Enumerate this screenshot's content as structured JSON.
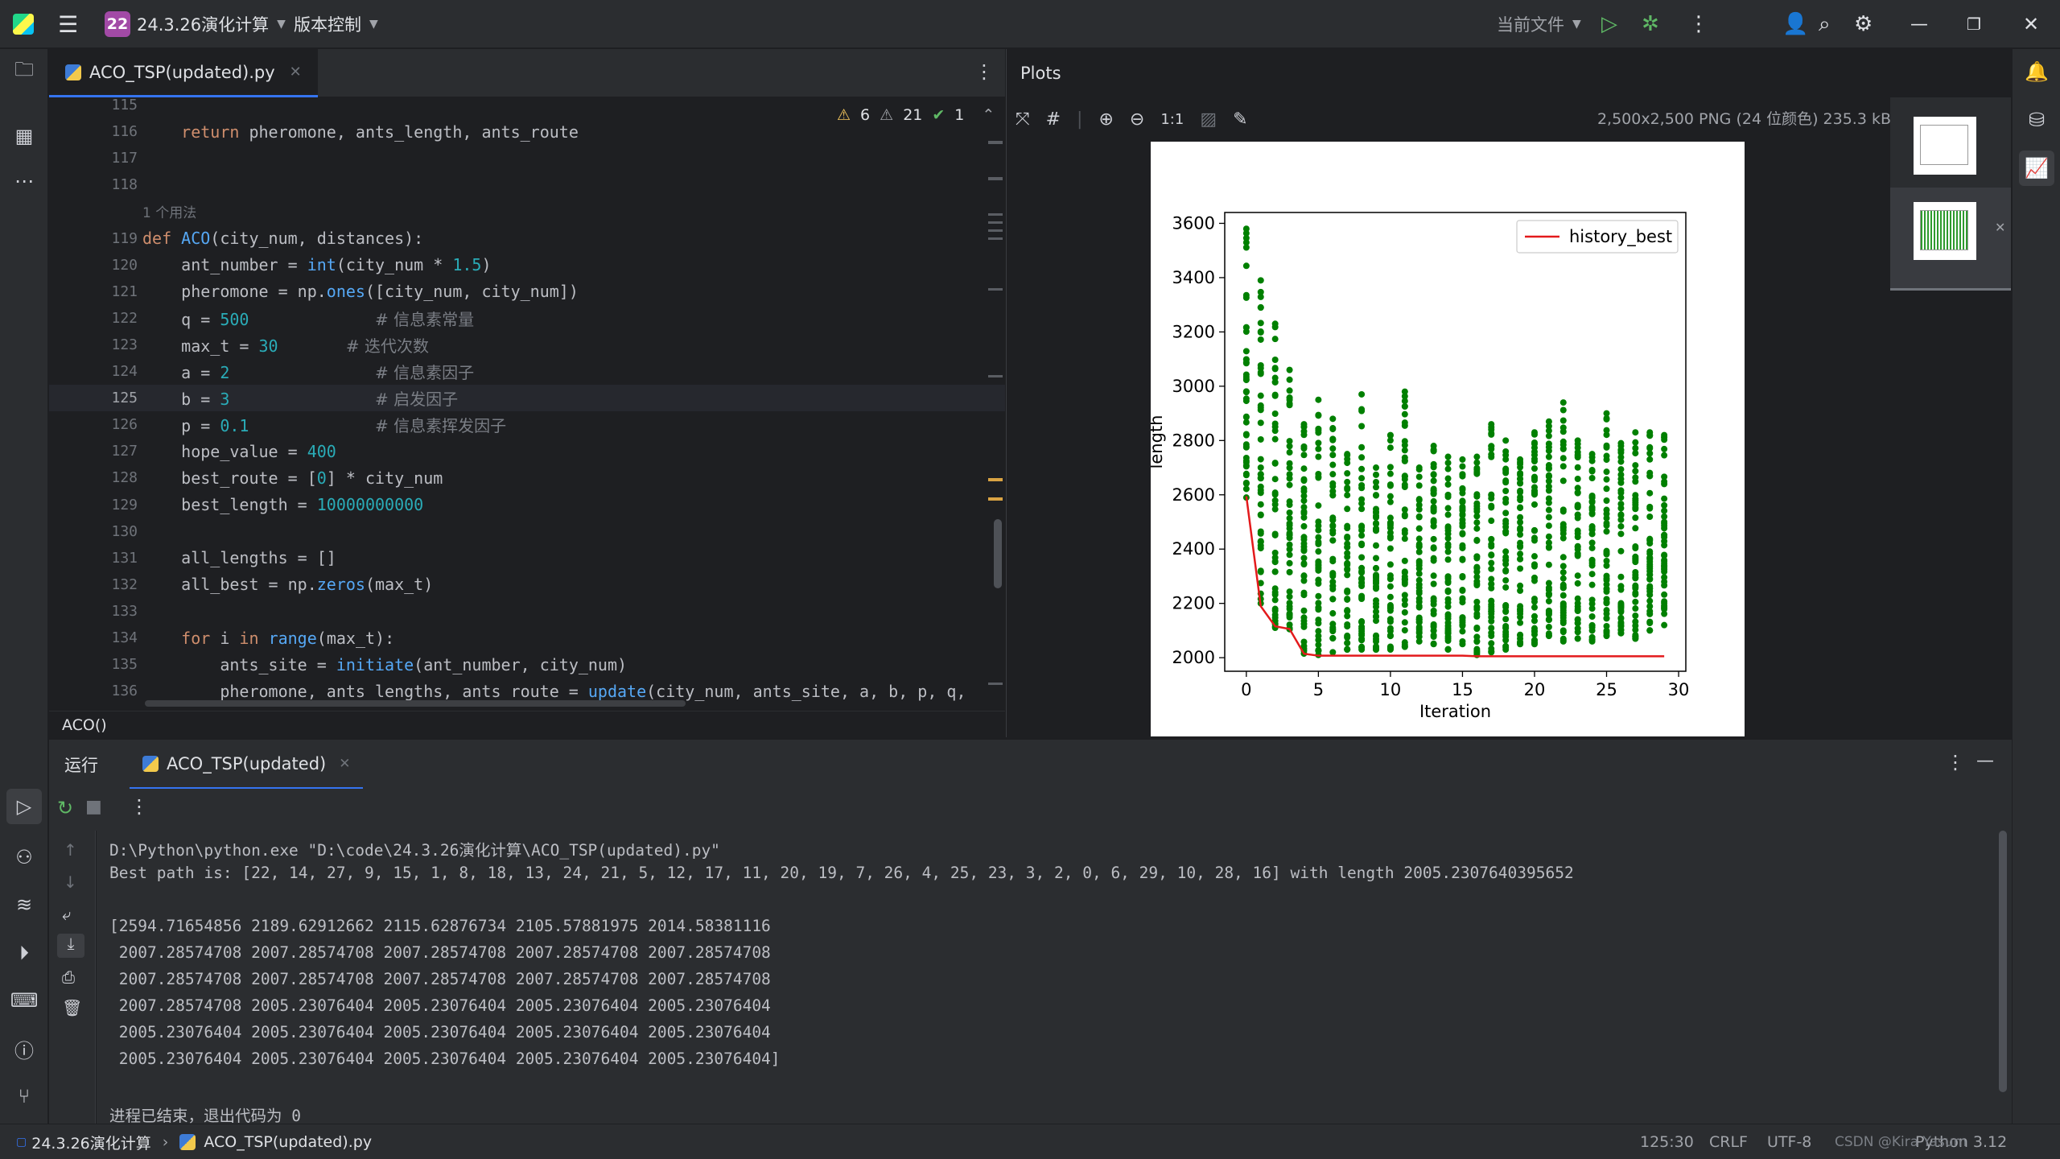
{
  "titlebar": {
    "project_badge": "22",
    "project_name": "24.3.26演化计算",
    "vcs_label": "版本控制",
    "run_config": "当前文件"
  },
  "editor": {
    "tab_label": "ACO_TSP(updated).py",
    "inspections": {
      "warnings": "6",
      "weak_warnings": "21",
      "ok": "1"
    },
    "usage_hint": "1 个用法",
    "lines": [
      {
        "n": "115",
        "code": ""
      },
      {
        "n": "116",
        "code": "    return pheromone, ants_length, ants_route"
      },
      {
        "n": "117",
        "code": ""
      },
      {
        "n": "118",
        "code": ""
      },
      {
        "n": "119",
        "code": "def ACO(city_num, distances):"
      },
      {
        "n": "120",
        "code": "    ant_number = int(city_num * 1.5)"
      },
      {
        "n": "121",
        "code": "    pheromone = np.ones([city_num, city_num])"
      },
      {
        "n": "122",
        "code": "    q = 500",
        "comment": "# 信息素常量",
        "cpos": 24
      },
      {
        "n": "123",
        "code": "    max_t = 30",
        "comment": "# 迭代次数",
        "cpos": 21
      },
      {
        "n": "124",
        "code": "    a = 2",
        "comment": "# 信息素因子",
        "cpos": 24
      },
      {
        "n": "125",
        "code": "    b = 3",
        "comment": "# 启发因子",
        "cpos": 24
      },
      {
        "n": "126",
        "code": "    p = 0.1",
        "comment": "# 信息素挥发因子",
        "cpos": 24
      },
      {
        "n": "127",
        "code": "    hope_value = 400"
      },
      {
        "n": "128",
        "code": "    best_route = [0] * city_num"
      },
      {
        "n": "129",
        "code": "    best_length = 10000000000"
      },
      {
        "n": "130",
        "code": ""
      },
      {
        "n": "131",
        "code": "    all_lengths = []"
      },
      {
        "n": "132",
        "code": "    all_best = np.zeros(max_t)"
      },
      {
        "n": "133",
        "code": ""
      },
      {
        "n": "134",
        "code": "    for i in range(max_t):"
      },
      {
        "n": "135",
        "code": "        ants_site = initiate(ant_number, city_num)"
      },
      {
        "n": "136",
        "code": "        pheromone, ants_lengths, ants_route = update(city_num, ants_site, a, b, p, q,"
      }
    ],
    "breadcrumb": "ACO()"
  },
  "plots": {
    "title": "Plots",
    "zoom_reset": "1:1",
    "image_info": "2,500x2,500 PNG (24 位颜色) 235.3 kB"
  },
  "chart_data": {
    "type": "scatter",
    "xlabel": "Iteration",
    "ylabel": "length",
    "xlim": [
      -1.5,
      30.5
    ],
    "ylim": [
      1950,
      3640
    ],
    "xticks": [
      0,
      5,
      10,
      15,
      20,
      25,
      30
    ],
    "yticks": [
      2000,
      2200,
      2400,
      2600,
      2800,
      3000,
      3200,
      3400,
      3600
    ],
    "legend": {
      "entries": [
        "history_best"
      ],
      "placement": "top-right"
    },
    "series": [
      {
        "name": "history_best",
        "kind": "line",
        "color": "#e31a1c",
        "x": [
          0,
          1,
          2,
          3,
          4,
          5,
          6,
          7,
          8,
          9,
          10,
          11,
          12,
          13,
          14,
          15,
          16,
          17,
          18,
          19,
          20,
          21,
          22,
          23,
          24,
          25,
          26,
          27,
          28,
          29
        ],
        "y": [
          2594.72,
          2189.63,
          2115.63,
          2105.58,
          2014.58,
          2007.29,
          2007.29,
          2007.29,
          2007.29,
          2007.29,
          2007.29,
          2007.29,
          2007.29,
          2007.29,
          2007.29,
          2007.29,
          2005.23,
          2005.23,
          2005.23,
          2005.23,
          2005.23,
          2005.23,
          2005.23,
          2005.23,
          2005.23,
          2005.23,
          2005.23,
          2005.23,
          2005.23,
          2005.23
        ]
      },
      {
        "name": "",
        "kind": "scatter",
        "color": "#008000",
        "per_iteration_range": [
          [
            2590,
            3580
          ],
          [
            2200,
            3390
          ],
          [
            2110,
            3230
          ],
          [
            2105,
            3060
          ],
          [
            2015,
            2860
          ],
          [
            2010,
            2950
          ],
          [
            2020,
            2880
          ],
          [
            2030,
            2750
          ],
          [
            2030,
            2970
          ],
          [
            2030,
            2700
          ],
          [
            2030,
            2820
          ],
          [
            2040,
            2980
          ],
          [
            2060,
            2700
          ],
          [
            2050,
            2780
          ],
          [
            2030,
            2740
          ],
          [
            2050,
            2730
          ],
          [
            2010,
            2740
          ],
          [
            2020,
            2860
          ],
          [
            2030,
            2800
          ],
          [
            2050,
            2730
          ],
          [
            2050,
            2830
          ],
          [
            2080,
            2870
          ],
          [
            2060,
            2940
          ],
          [
            2070,
            2800
          ],
          [
            2060,
            2750
          ],
          [
            2080,
            2900
          ],
          [
            2090,
            2790
          ],
          [
            2070,
            2830
          ],
          [
            2100,
            2830
          ],
          [
            2120,
            2820
          ]
        ]
      }
    ]
  },
  "run": {
    "tab_run": "运行",
    "tab_config": "ACO_TSP(updated)",
    "console": [
      "D:\\Python\\python.exe \"D:\\code\\24.3.26演化计算\\ACO_TSP(updated).py\"",
      "Best path is: [22, 14, 27, 9, 15, 1, 8, 18, 13, 24, 21, 5, 12, 17, 11, 20, 19, 7, 26, 4, 25, 23, 3, 2, 0, 6, 29, 10, 28, 16] with length 2005.2307640395652",
      "",
      "[2594.71654856 2189.62912662 2115.62876734 2105.57881975 2014.58381116",
      " 2007.28574708 2007.28574708 2007.28574708 2007.28574708 2007.28574708",
      " 2007.28574708 2007.28574708 2007.28574708 2007.28574708 2007.28574708",
      " 2007.28574708 2005.23076404 2005.23076404 2005.23076404 2005.23076404",
      " 2005.23076404 2005.23076404 2005.23076404 2005.23076404 2005.23076404",
      " 2005.23076404 2005.23076404 2005.23076404 2005.23076404 2005.23076404]",
      "",
      "进程已结束，退出代码为 0"
    ]
  },
  "statusbar": {
    "project": "24.3.26演化计算",
    "file": "ACO_TSP(updated).py",
    "position": "125:30",
    "line_sep": "CRLF",
    "encoding": "UTF-8",
    "interpreter": "Python 3.12",
    "watermark": "CSDN @Kira Yasum"
  }
}
